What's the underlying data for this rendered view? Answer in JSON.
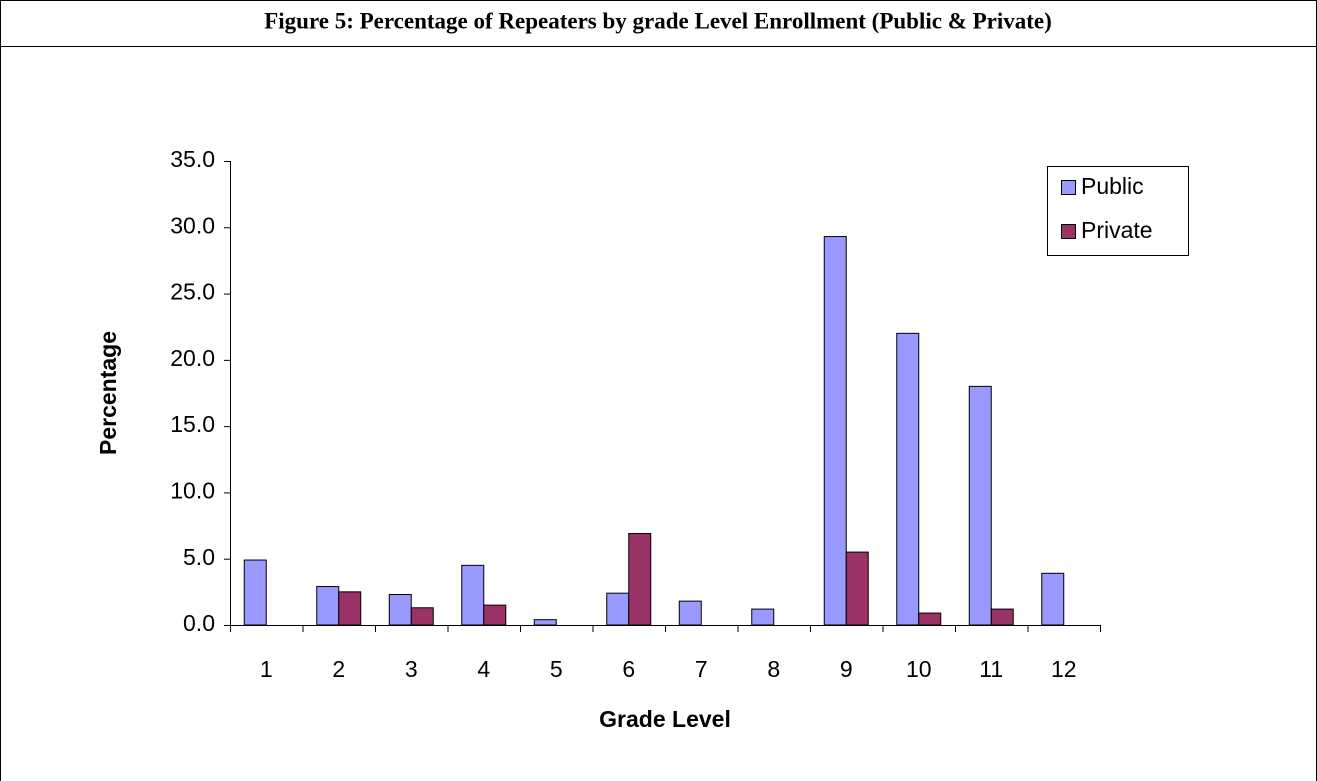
{
  "chart_data": {
    "type": "bar",
    "title": "Figure 5: Percentage of Repeaters by grade Level Enrollment (Public & Private)",
    "x_label": "Grade Level",
    "y_label": "Percentage",
    "categories": [
      "1",
      "2",
      "3",
      "4",
      "5",
      "6",
      "7",
      "8",
      "9",
      "10",
      "11",
      "12"
    ],
    "series": [
      {
        "name": "Public",
        "color": "#9999ff",
        "values": [
          4.9,
          2.9,
          2.3,
          4.5,
          0.4,
          2.4,
          1.8,
          1.2,
          29.3,
          22.0,
          18.0,
          3.9
        ]
      },
      {
        "name": "Private",
        "color": "#993366",
        "values": [
          0,
          2.5,
          1.3,
          1.5,
          0,
          6.9,
          0,
          0,
          5.5,
          0.9,
          1.2,
          0
        ]
      }
    ],
    "ylim": [
      0,
      35
    ],
    "yticks": [
      {
        "value": 0,
        "label": "0.0"
      },
      {
        "value": 5,
        "label": "5.0"
      },
      {
        "value": 10,
        "label": "10.0"
      },
      {
        "value": 15,
        "label": "15.0"
      },
      {
        "value": 20,
        "label": "20.0"
      },
      {
        "value": 25,
        "label": "25.0"
      },
      {
        "value": 30,
        "label": "30.0"
      },
      {
        "value": 35,
        "label": "35.0"
      }
    ],
    "legend": "top-right"
  }
}
